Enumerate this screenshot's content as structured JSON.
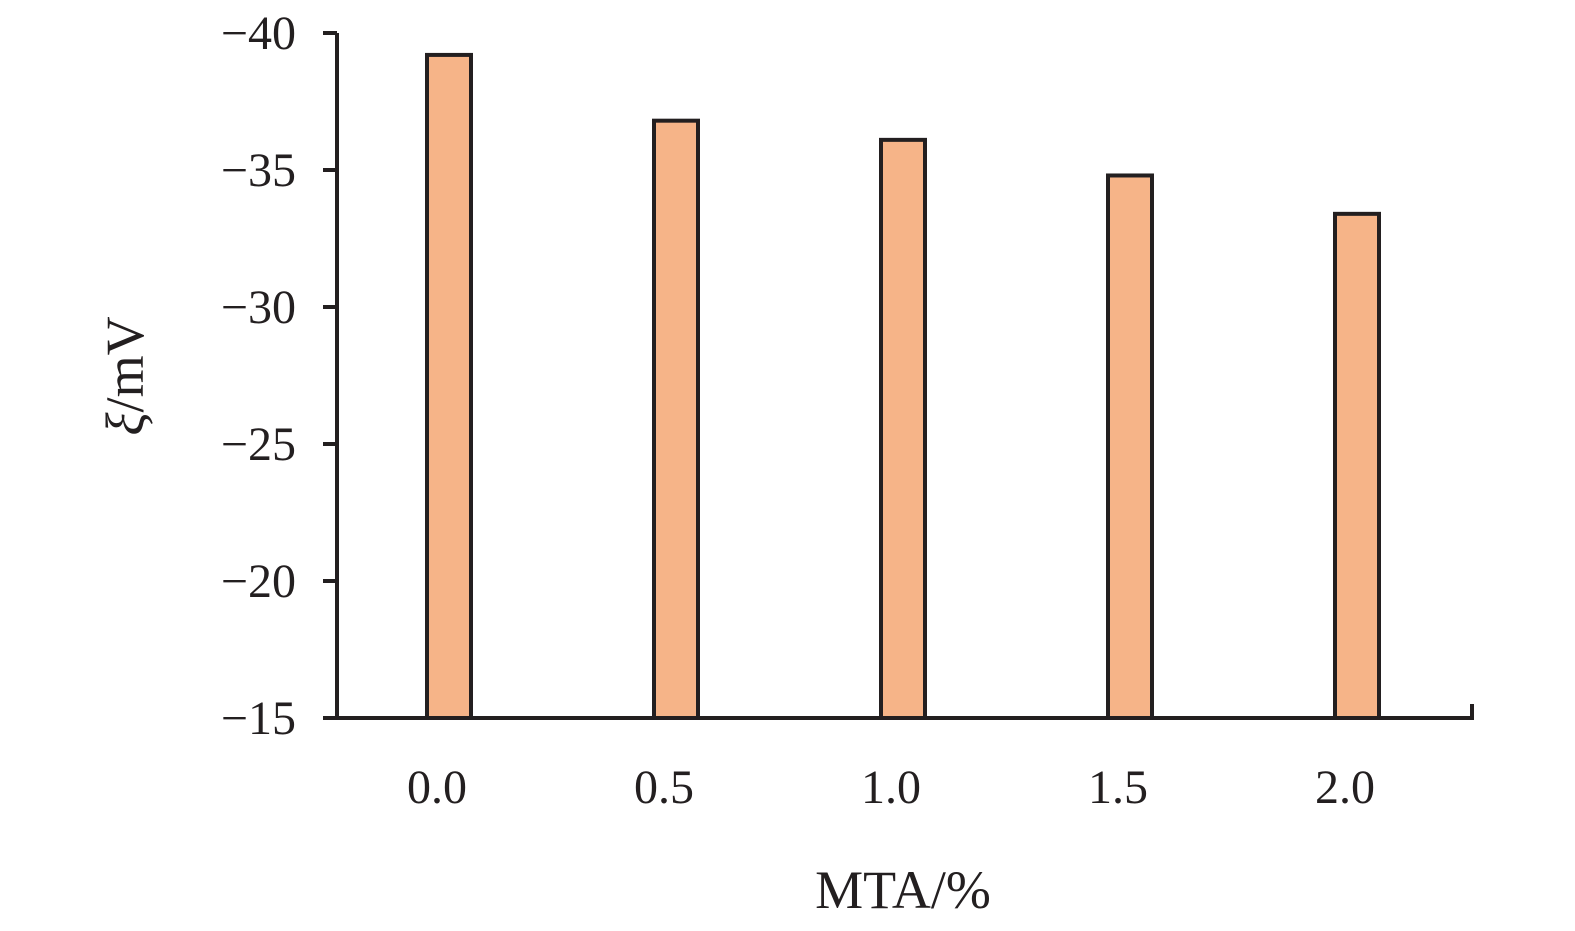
{
  "chart_data": {
    "type": "bar",
    "xlabel": "MTA/%",
    "ylabel_symbol": "ξ",
    "ylabel_unit": "/mV",
    "categories": [
      "0.0",
      "0.5",
      "1.0",
      "1.5",
      "2.0"
    ],
    "values": [
      -39.2,
      -36.8,
      -36.1,
      -34.8,
      -33.4
    ],
    "ylim": [
      -15,
      -40
    ],
    "y_ticks": [
      -40,
      -35,
      -30,
      -25,
      -20,
      -15
    ],
    "y_tick_labels": [
      "−40",
      "−35",
      "−30",
      "−25",
      "−20",
      "−15"
    ],
    "bar_color": "#f6b488",
    "edge_color": "#231f20",
    "grid": false,
    "legend": "none"
  }
}
